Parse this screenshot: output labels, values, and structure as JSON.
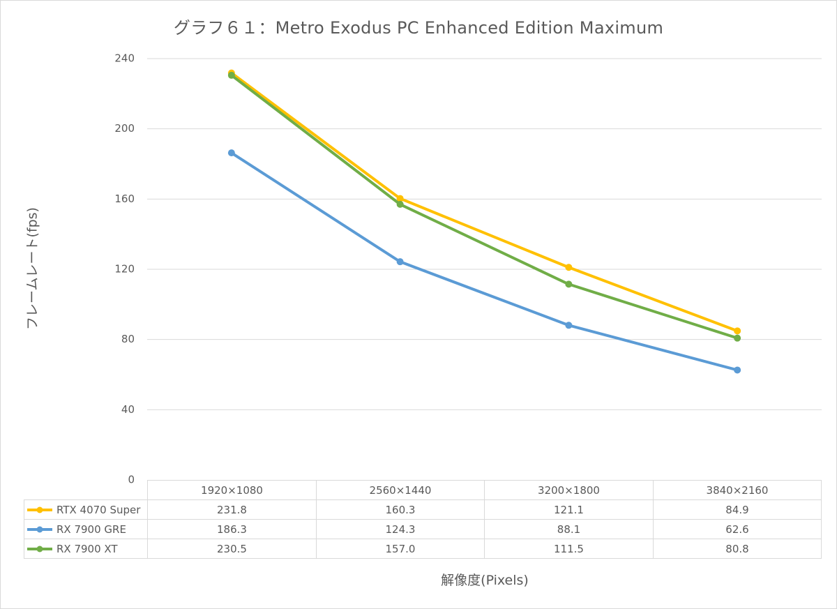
{
  "chart_data": {
    "type": "line",
    "title": "グラフ６１：Metro Exodus PC Enhanced Edition Maximum",
    "xlabel": "解像度(Pixels)",
    "ylabel": "フレームレート(fps)",
    "categories": [
      "1920×1080",
      "2560×1440",
      "3200×1800",
      "3840×2160"
    ],
    "ylim": [
      0,
      240
    ],
    "yticks": [
      "0",
      "40",
      "80",
      "120",
      "160",
      "200",
      "240"
    ],
    "grid": true,
    "legend": "data-table",
    "series": [
      {
        "name": "RTX 4070 Super",
        "color": "#ffc000",
        "values": [
          231.8,
          160.3,
          121.1,
          84.9
        ],
        "labels": [
          "231.8",
          "160.3",
          "121.1",
          "84.9"
        ]
      },
      {
        "name": "RX 7900 GRE",
        "color": "#5b9bd5",
        "values": [
          186.3,
          124.3,
          88.1,
          62.6
        ],
        "labels": [
          "186.3",
          "124.3",
          "88.1",
          "62.6"
        ]
      },
      {
        "name": "RX 7900 XT",
        "color": "#70ad47",
        "values": [
          230.5,
          157.0,
          111.5,
          80.8
        ],
        "labels": [
          "230.5",
          "157.0",
          "111.5",
          "80.8"
        ]
      }
    ]
  }
}
